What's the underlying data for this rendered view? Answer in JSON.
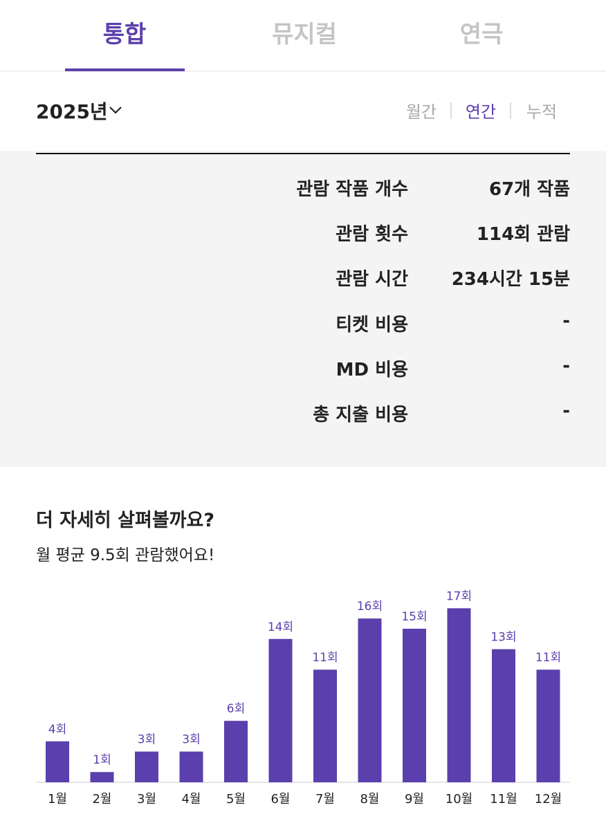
{
  "tabs": {
    "items": [
      "통합",
      "뮤지컬",
      "연극"
    ],
    "active": 0
  },
  "year_selector": "2025년",
  "period": {
    "items": [
      "월간",
      "연간",
      "누적"
    ],
    "active": 1
  },
  "stats": [
    {
      "label": "관람 작품 개수",
      "value": "67개 작품"
    },
    {
      "label": "관람 횟수",
      "value": "114회 관람"
    },
    {
      "label": "관람 시간",
      "value": "234시간 15분"
    },
    {
      "label": "티켓 비용",
      "value": "-"
    },
    {
      "label": "MD 비용",
      "value": "-"
    },
    {
      "label": "총 지출 비용",
      "value": "-"
    }
  ],
  "detail": {
    "title": "더 자세히 살펴볼까요?",
    "subtitle": "월 평균 9.5회 관람했어요!"
  },
  "chart_data": {
    "type": "bar",
    "categories": [
      "1월",
      "2월",
      "3월",
      "4월",
      "5월",
      "6월",
      "7월",
      "8월",
      "9월",
      "10월",
      "11월",
      "12월"
    ],
    "values": [
      4,
      1,
      3,
      3,
      6,
      14,
      11,
      16,
      15,
      17,
      13,
      11
    ],
    "value_labels": [
      "4회",
      "1회",
      "3회",
      "3회",
      "6회",
      "14회",
      "11회",
      "16회",
      "15회",
      "17회",
      "13회",
      "11회"
    ],
    "color": "#5b3fad"
  }
}
